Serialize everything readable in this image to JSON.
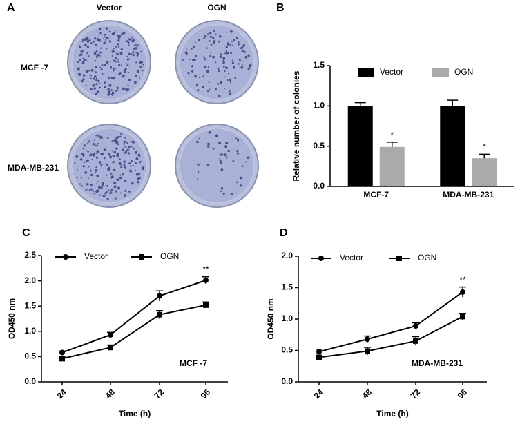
{
  "panel_a": {
    "panel": "A",
    "columns": [
      "Vector",
      "OGN"
    ],
    "rows": [
      "MCF -7",
      "MDA-MB-231"
    ]
  },
  "chart_data": [
    {
      "type": "bar",
      "panel": "B",
      "y_label": "Relative number of colonies",
      "categories": [
        "MCF-7",
        "MDA-MB-231"
      ],
      "series": [
        {
          "name": "Vector",
          "color": "#000000",
          "values": [
            1.0,
            1.0
          ],
          "errors": [
            0.04,
            0.07
          ]
        },
        {
          "name": "OGN",
          "color": "#aaaaaa",
          "values": [
            0.49,
            0.35
          ],
          "errors": [
            0.06,
            0.05
          ]
        }
      ],
      "annotations": [
        {
          "text": "*",
          "category": "MCF-7",
          "series": "OGN"
        },
        {
          "text": "*",
          "category": "MDA-MB-231",
          "series": "OGN"
        }
      ],
      "ylim": [
        0,
        1.5
      ],
      "yticks": [
        {
          "value": 0,
          "label": "0.0"
        },
        {
          "value": 0.5,
          "label": "0.5"
        },
        {
          "value": 1,
          "label": "1.0"
        },
        {
          "value": 1.5,
          "label": "1.5"
        }
      ]
    },
    {
      "type": "line",
      "panel": "C",
      "x_label": "Time (h)",
      "y_label": "OD450 nm",
      "inner_label": "MCF -7",
      "categories": [
        "24",
        "48",
        "72",
        "96"
      ],
      "series": [
        {
          "name": "Vector",
          "color": "#000000",
          "marker": "circle",
          "values": [
            0.58,
            0.93,
            1.7,
            2.01
          ],
          "errors": [
            0.03,
            0.05,
            0.1,
            0.07
          ]
        },
        {
          "name": "OGN",
          "color": "#000000",
          "marker": "square",
          "values": [
            0.46,
            0.68,
            1.33,
            1.52
          ],
          "errors": [
            0.03,
            0.05,
            0.08,
            0.06
          ]
        }
      ],
      "annotations": [
        {
          "text": "**",
          "category": "96",
          "series": "Vector"
        }
      ],
      "ylim": [
        0,
        2.5
      ],
      "yticks": [
        {
          "value": 0,
          "label": "0.0"
        },
        {
          "value": 0.5,
          "label": "0.5"
        },
        {
          "value": 1,
          "label": "1.0"
        },
        {
          "value": 1.5,
          "label": "1.5"
        },
        {
          "value": 2,
          "label": "2.0"
        },
        {
          "value": 2.5,
          "label": "2.5"
        }
      ]
    },
    {
      "type": "line",
      "panel": "D",
      "x_label": "Time (h)",
      "y_label": "OD450 nm",
      "inner_label": "MDA-MB-231",
      "categories": [
        "24",
        "48",
        "72",
        "96"
      ],
      "series": [
        {
          "name": "Vector",
          "color": "#000000",
          "marker": "circle",
          "values": [
            0.48,
            0.68,
            0.89,
            1.43
          ],
          "errors": [
            0.04,
            0.05,
            0.05,
            0.08
          ]
        },
        {
          "name": "OGN",
          "color": "#000000",
          "marker": "square",
          "values": [
            0.39,
            0.49,
            0.65,
            1.04
          ],
          "errors": [
            0.03,
            0.06,
            0.07,
            0.05
          ]
        }
      ],
      "annotations": [
        {
          "text": "**",
          "category": "96",
          "series": "Vector"
        }
      ],
      "ylim": [
        0,
        2
      ],
      "yticks": [
        {
          "value": 0,
          "label": "0.0"
        },
        {
          "value": 0.5,
          "label": "0.5"
        },
        {
          "value": 1,
          "label": "1.0"
        },
        {
          "value": 1.5,
          "label": "1.5"
        },
        {
          "value": 2,
          "label": "2.0"
        }
      ]
    }
  ]
}
